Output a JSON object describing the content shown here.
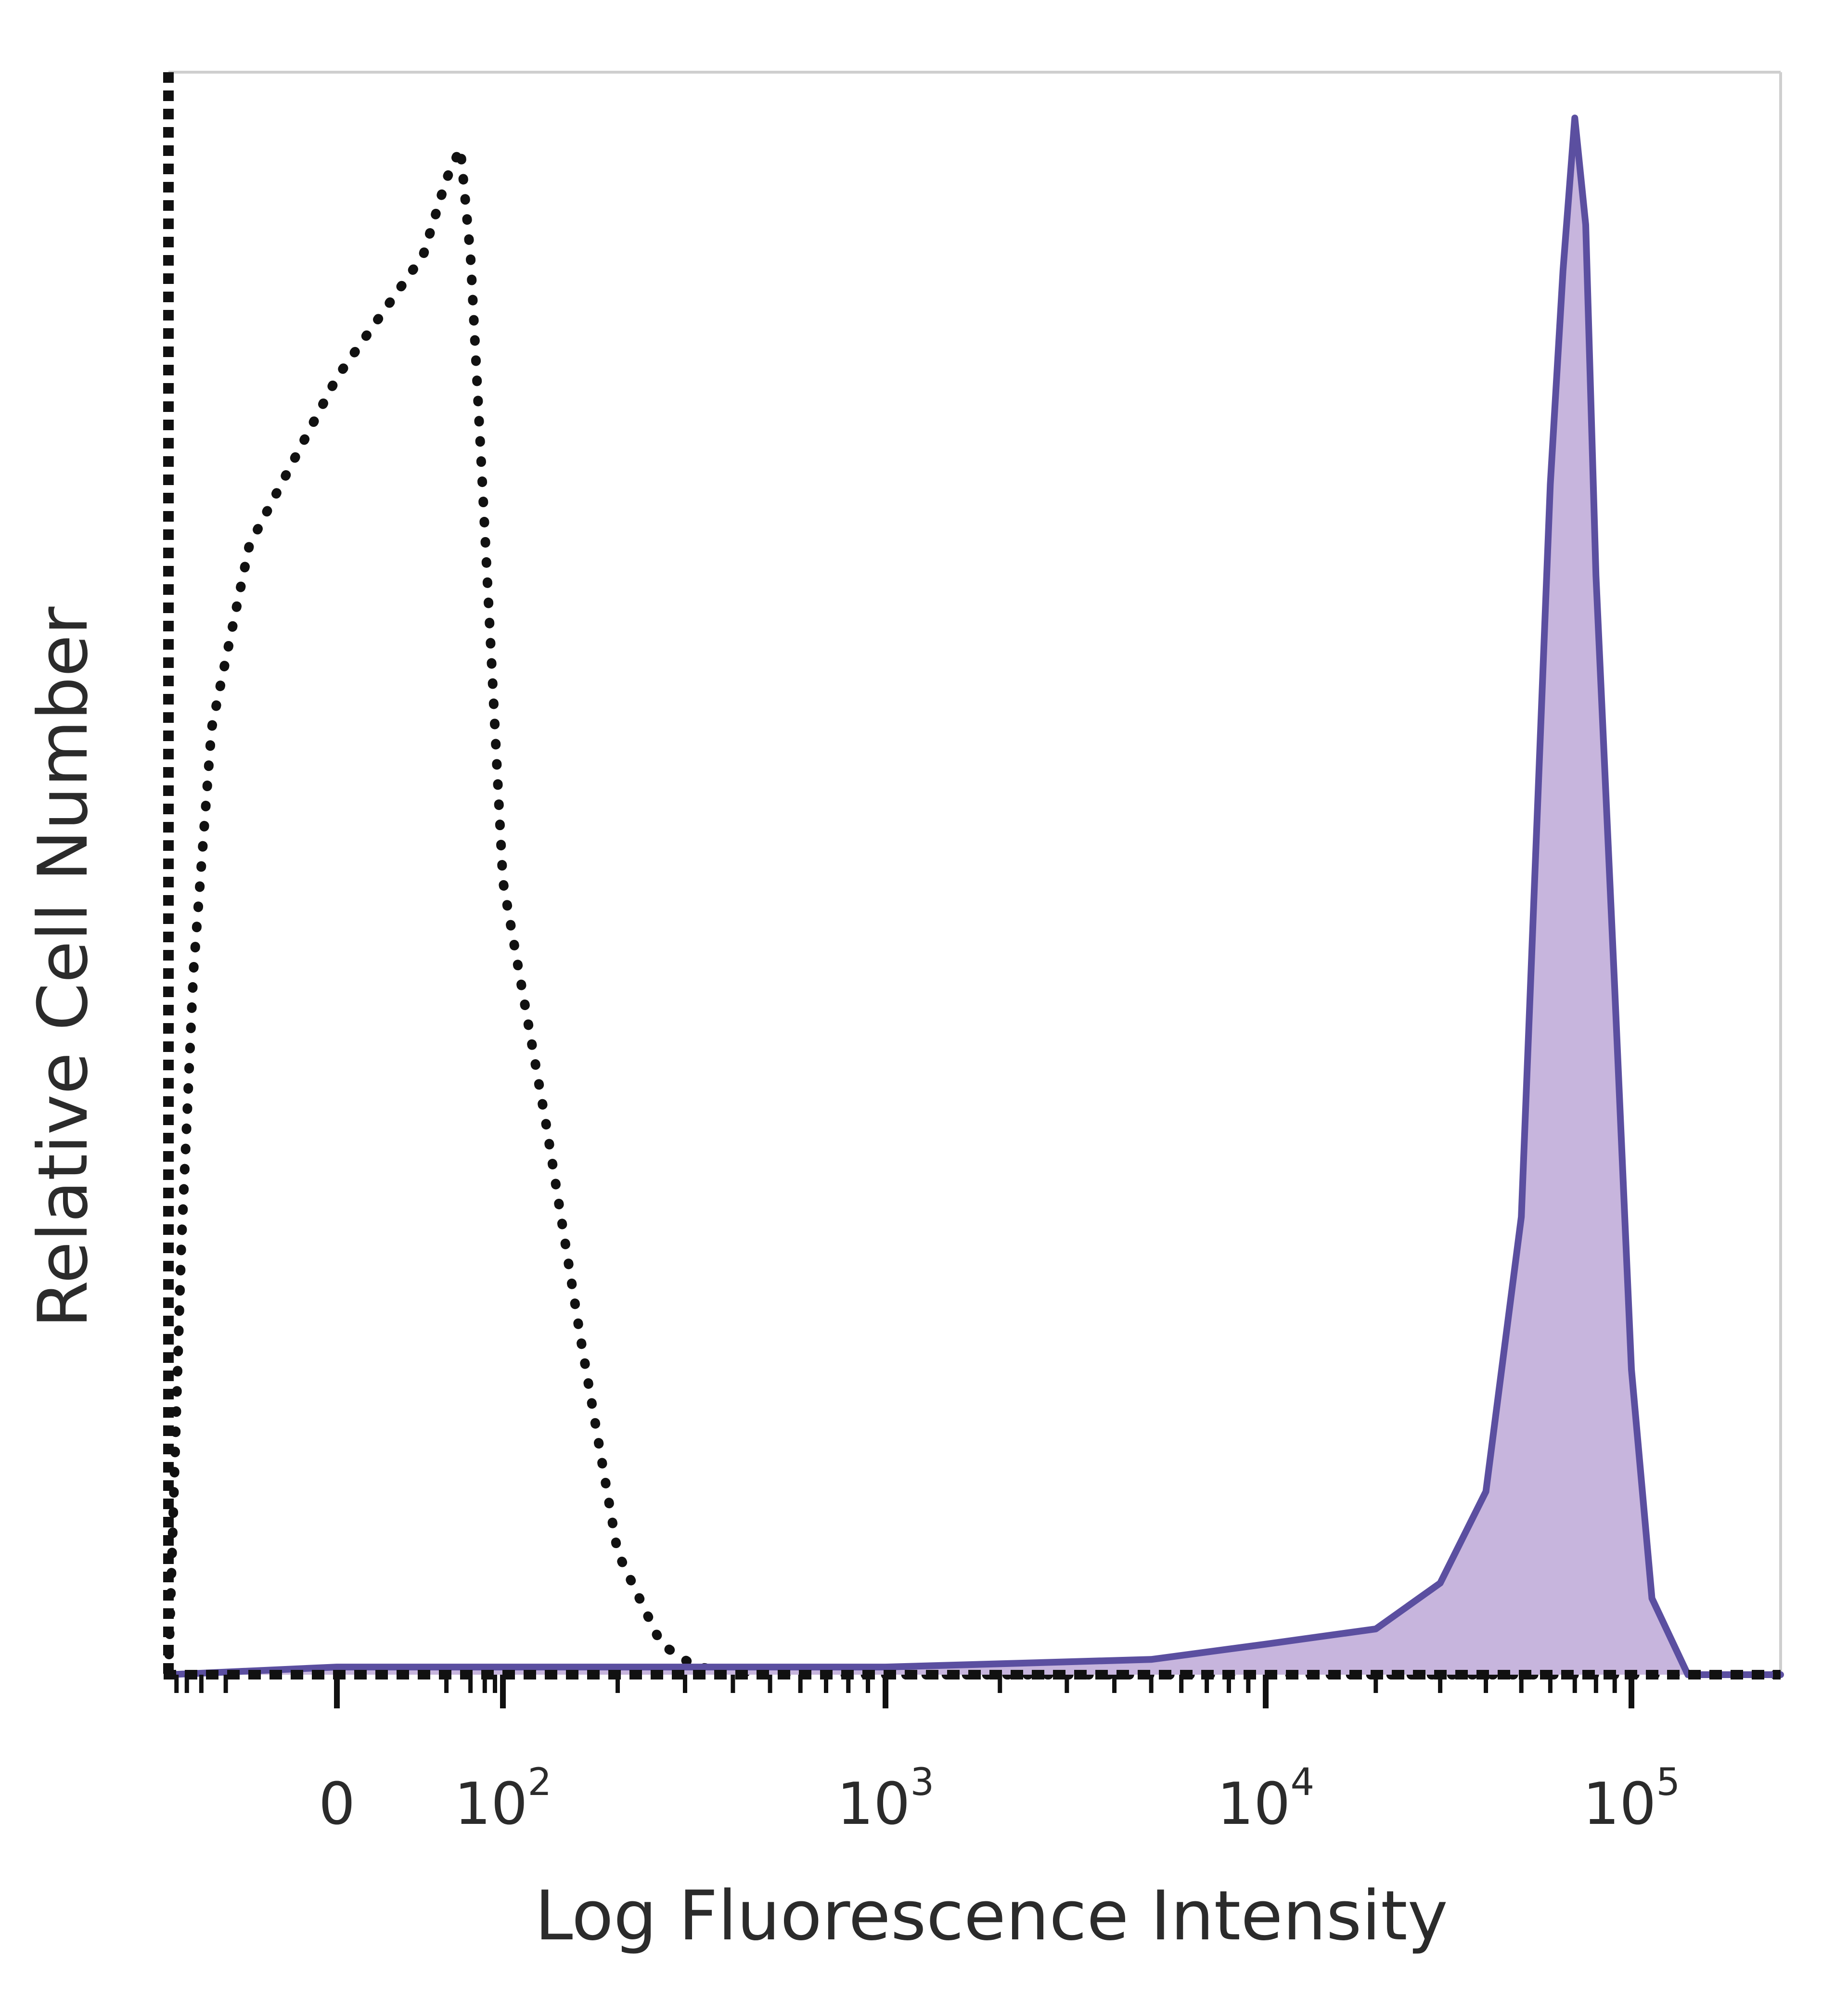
{
  "chart_data": {
    "type": "area",
    "title": "",
    "xlabel": "Log Fluorescence Intensity",
    "ylabel": "Relative Cell Number",
    "xscale": "biexponential (log above 10^2, linear near 0)",
    "xlim": [
      -100,
      200000
    ],
    "ylim": [
      0,
      1.05
    ],
    "grid": false,
    "legend": "none",
    "x_ticks": [
      {
        "value": 0,
        "base": "0",
        "exp": ""
      },
      {
        "value": 100,
        "base": "10",
        "exp": "2"
      },
      {
        "value": 1000,
        "base": "10",
        "exp": "3"
      },
      {
        "value": 10000,
        "base": "10",
        "exp": "4"
      },
      {
        "value": 100000,
        "base": "10",
        "exp": "5"
      }
    ],
    "series": [
      {
        "style": "dotted line, no fill",
        "color": "#111111",
        "x": [
          -100,
          -70,
          -50,
          -30,
          -10,
          0,
          10,
          20,
          30,
          40,
          60,
          80,
          100,
          130,
          160,
          200,
          260,
          320,
          500,
          1000,
          10000,
          100000,
          200000
        ],
        "y": [
          0.0,
          0.28,
          0.46,
          0.62,
          0.74,
          0.85,
          0.93,
          0.98,
          1.0,
          0.93,
          0.75,
          0.62,
          0.52,
          0.36,
          0.22,
          0.08,
          0.02,
          0.005,
          0.0,
          0.0,
          0.0,
          0.0,
          0.0
        ]
      },
      {
        "style": "solid line, filled",
        "color": "#5b4fa0",
        "fill": "#c7b5dd",
        "x": [
          -100,
          0,
          1000,
          5000,
          10000,
          20000,
          30000,
          40000,
          50000,
          60000,
          65000,
          70000,
          75000,
          80000,
          90000,
          100000,
          110000,
          130000,
          200000
        ],
        "y": [
          0.0,
          0.005,
          0.005,
          0.01,
          0.02,
          0.03,
          0.06,
          0.12,
          0.3,
          0.78,
          0.92,
          1.02,
          0.95,
          0.72,
          0.45,
          0.2,
          0.05,
          0.0,
          0.0
        ]
      }
    ]
  }
}
